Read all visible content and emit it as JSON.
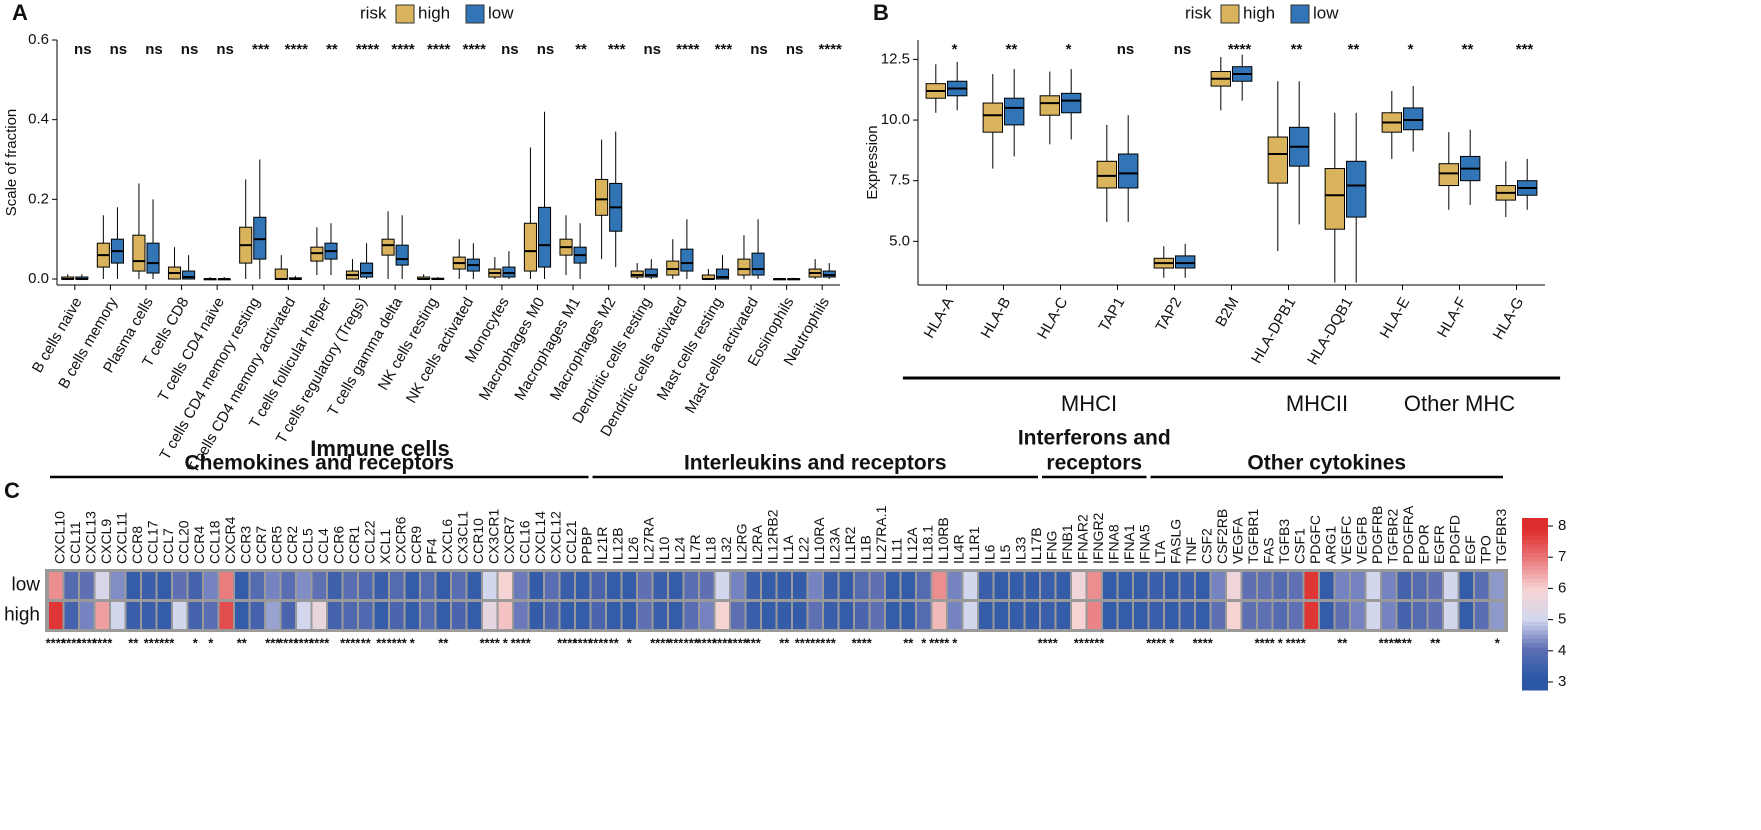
{
  "chart_data": [
    {
      "type": "box",
      "panel_label": "A",
      "x_label": "Immune cells",
      "y_label": "Scale of fraction",
      "legend_title": "risk",
      "legend_position": "top",
      "categories": [
        "B cells naive",
        "B cells memory",
        "Plasma cells",
        "T cells CD8",
        "T cells CD4 naive",
        "T cells CD4 memory resting",
        "T cells CD4 memory activated",
        "T cells follicular helper",
        "T cells regulatory (Tregs)",
        "T cells gamma delta",
        "NK cells resting",
        "NK cells activated",
        "Monocytes",
        "Macrophages M0",
        "Macrophages M1",
        "Macrophages M2",
        "Dendritic cells resting",
        "Dendritic cells activated",
        "Mast cells resting",
        "Mast cells activated",
        "Eosinophils",
        "Neutrophils"
      ],
      "significance": [
        "ns",
        "ns",
        "ns",
        "ns",
        "ns",
        "***",
        "****",
        "**",
        "****",
        "****",
        "****",
        "****",
        "ns",
        "ns",
        "**",
        "***",
        "ns",
        "****",
        "***",
        "ns",
        "ns",
        "****"
      ],
      "series": [
        {
          "name": "high",
          "color": "#d9b45c",
          "values": [
            [
              0,
              0,
              0,
              0.005,
              0.012
            ],
            [
              0,
              0.03,
              0.06,
              0.09,
              0.16
            ],
            [
              0,
              0.02,
              0.045,
              0.11,
              0.24
            ],
            [
              0,
              0,
              0.015,
              0.03,
              0.08
            ],
            [
              0,
              0,
              0,
              0,
              0.005
            ],
            [
              0,
              0.04,
              0.085,
              0.13,
              0.25
            ],
            [
              0,
              0,
              0,
              0.025,
              0.06
            ],
            [
              0.01,
              0.045,
              0.065,
              0.08,
              0.13
            ],
            [
              0,
              0,
              0.01,
              0.02,
              0.05
            ],
            [
              0,
              0.06,
              0.085,
              0.1,
              0.17
            ],
            [
              0,
              0,
              0,
              0.005,
              0.012
            ],
            [
              0,
              0.025,
              0.04,
              0.055,
              0.1
            ],
            [
              0,
              0.005,
              0.015,
              0.025,
              0.055
            ],
            [
              0,
              0.02,
              0.07,
              0.14,
              0.33
            ],
            [
              0.01,
              0.06,
              0.08,
              0.1,
              0.16
            ],
            [
              0.05,
              0.16,
              0.2,
              0.25,
              0.35
            ],
            [
              0,
              0.005,
              0.01,
              0.02,
              0.04
            ],
            [
              0,
              0.01,
              0.025,
              0.045,
              0.1
            ],
            [
              0,
              0,
              0,
              0.01,
              0.025
            ],
            [
              0,
              0.01,
              0.025,
              0.05,
              0.11
            ],
            [
              0,
              0,
              0,
              0,
              0.003
            ],
            [
              0,
              0.005,
              0.015,
              0.025,
              0.05
            ]
          ]
        },
        {
          "name": "low",
          "color": "#3175b6",
          "values": [
            [
              0,
              0,
              0,
              0.005,
              0.012
            ],
            [
              0,
              0.04,
              0.07,
              0.1,
              0.18
            ],
            [
              0,
              0.015,
              0.04,
              0.09,
              0.2
            ],
            [
              0,
              0,
              0.005,
              0.02,
              0.06
            ],
            [
              0,
              0,
              0,
              0,
              0.005
            ],
            [
              0,
              0.05,
              0.1,
              0.155,
              0.3
            ],
            [
              0,
              0,
              0,
              0.003,
              0.008
            ],
            [
              0.01,
              0.05,
              0.07,
              0.09,
              0.14
            ],
            [
              0,
              0.005,
              0.015,
              0.04,
              0.09
            ],
            [
              0,
              0.035,
              0.05,
              0.085,
              0.16
            ],
            [
              0,
              0,
              0,
              0.002,
              0.005
            ],
            [
              0,
              0.02,
              0.035,
              0.05,
              0.09
            ],
            [
              0,
              0.005,
              0.015,
              0.03,
              0.07
            ],
            [
              0,
              0.03,
              0.085,
              0.18,
              0.42
            ],
            [
              0,
              0.04,
              0.06,
              0.08,
              0.14
            ],
            [
              0.03,
              0.12,
              0.18,
              0.24,
              0.37
            ],
            [
              0,
              0.005,
              0.01,
              0.025,
              0.05
            ],
            [
              0,
              0.02,
              0.04,
              0.075,
              0.15
            ],
            [
              0,
              0,
              0.005,
              0.025,
              0.06
            ],
            [
              0,
              0.01,
              0.025,
              0.065,
              0.15
            ],
            [
              0,
              0,
              0,
              0,
              0.003
            ],
            [
              0,
              0.005,
              0.01,
              0.02,
              0.04
            ]
          ]
        }
      ],
      "ylim": [
        -0.015,
        0.6
      ],
      "yticks": [
        {
          "value": 0,
          "label": "0.0"
        },
        0.2,
        0.4,
        0.6
      ]
    },
    {
      "type": "box",
      "panel_label": "B",
      "y_label": "Expression",
      "legend_title": "risk",
      "legend_position": "top",
      "categories": [
        "HLA-A",
        "HLA-B",
        "HLA-C",
        "TAP1",
        "TAP2",
        "B2M",
        "HLA-DPB1",
        "HLA-DQB1",
        "HLA-E",
        "HLA-F",
        "HLA-G"
      ],
      "significance": [
        "*",
        "**",
        "*",
        "ns",
        "ns",
        "****",
        "**",
        "**",
        "*",
        "**",
        "***"
      ],
      "groups": [
        {
          "label": "MHCI",
          "start": 0,
          "end": 5
        },
        {
          "label": "MHCII",
          "start": 6,
          "end": 7
        },
        {
          "label": "Other MHC",
          "start": 8,
          "end": 10
        }
      ],
      "series": [
        {
          "name": "high",
          "color": "#d9b45c",
          "values": [
            [
              10.3,
              10.9,
              11.2,
              11.5,
              12.3
            ],
            [
              8.0,
              9.5,
              10.2,
              10.7,
              11.9
            ],
            [
              9.0,
              10.2,
              10.7,
              11.0,
              12.0
            ],
            [
              5.8,
              7.2,
              7.7,
              8.3,
              9.8
            ],
            [
              3.5,
              3.9,
              4.1,
              4.3,
              4.8
            ],
            [
              10.4,
              11.4,
              11.7,
              12.0,
              12.6
            ],
            [
              4.6,
              7.4,
              8.6,
              9.3,
              11.6
            ],
            [
              3.3,
              5.5,
              6.9,
              8.0,
              10.3
            ],
            [
              8.4,
              9.5,
              9.9,
              10.3,
              11.2
            ],
            [
              6.3,
              7.3,
              7.8,
              8.2,
              9.5
            ],
            [
              6.0,
              6.7,
              7.0,
              7.3,
              8.3
            ]
          ]
        },
        {
          "name": "low",
          "color": "#3175b6",
          "values": [
            [
              10.4,
              11.0,
              11.3,
              11.6,
              12.4
            ],
            [
              8.5,
              9.8,
              10.5,
              10.9,
              12.1
            ],
            [
              9.2,
              10.3,
              10.8,
              11.1,
              12.1
            ],
            [
              5.8,
              7.2,
              7.8,
              8.6,
              10.2
            ],
            [
              3.5,
              3.9,
              4.1,
              4.4,
              4.9
            ],
            [
              10.8,
              11.6,
              11.9,
              12.2,
              12.7
            ],
            [
              5.7,
              8.1,
              8.9,
              9.7,
              11.6
            ],
            [
              3.3,
              6.0,
              7.3,
              8.3,
              10.3
            ],
            [
              8.7,
              9.6,
              10.0,
              10.5,
              11.4
            ],
            [
              6.5,
              7.5,
              8.0,
              8.5,
              9.6
            ],
            [
              6.3,
              6.9,
              7.2,
              7.5,
              8.4
            ]
          ]
        }
      ],
      "ylim": [
        3.2,
        13.3
      ],
      "yticks": [
        {
          "value": 5,
          "label": "5.0"
        },
        7.5,
        {
          "value": 10,
          "label": "10.0"
        },
        12.5
      ]
    },
    {
      "type": "heatmap",
      "panel_label": "C",
      "groups": [
        {
          "label": [
            "Chemokines and receptors"
          ],
          "start": 0,
          "end": 34
        },
        {
          "label": [
            "Interleukins and receptors"
          ],
          "start": 35,
          "end": 63
        },
        {
          "label": [
            "Interferons and",
            "receptors"
          ],
          "start": 64,
          "end": 70
        },
        {
          "label": [
            "Other cytokines"
          ],
          "start": 71,
          "end": 93
        }
      ],
      "columns": [
        "CXCL10",
        "CCL11",
        "CXCL13",
        "CXCL9",
        "CXCL11",
        "CCR8",
        "CCL17",
        "CCL7",
        "CCL20",
        "CCR4",
        "CCL18",
        "CXCR4",
        "CCR3",
        "CCR7",
        "CCR5",
        "CCR2",
        "CCL5",
        "CCL4",
        "CCR6",
        "CCR1",
        "CCL22",
        "XCL1",
        "CXCR6",
        "CCR9",
        "PF4",
        "CXCL6",
        "CX3CL1",
        "CCR10",
        "CX3CR1",
        "CXCR7",
        "CCL16",
        "CXCL14",
        "CXCL12",
        "CCL21",
        "PPBP",
        "IL21R",
        "IL12B",
        "IL26",
        "IL27RA",
        "IL10",
        "IL24",
        "IL7R",
        "IL18",
        "IL32",
        "IL2RG",
        "IL2RA",
        "IL12RB2",
        "IL1A",
        "IL22",
        "IL10RA",
        "IL23A",
        "IL1R2",
        "IL1B",
        "IL27RA.1",
        "IL11",
        "IL12A",
        "IL18.1",
        "IL10RB",
        "IL4R",
        "IL1R1",
        "IL6",
        "IL5",
        "IL33",
        "IL17B",
        "IFNG",
        "IFNB1",
        "IFNAR2",
        "IFNGR2",
        "IFNA8",
        "IFNA1",
        "IFNA5",
        "LTA",
        "FASLG",
        "TNF",
        "CSF2",
        "CSF2RB",
        "VEGFA",
        "TGFBR1",
        "FAS",
        "TGFB3",
        "CSF1",
        "PDGFC",
        "ARG1",
        "VEGFC",
        "VEGFB",
        "PDGFRB",
        "TGFBR2",
        "PDGFRA",
        "EPOR",
        "EGFR",
        "PDGFD",
        "EGF",
        "TPO",
        "TGFBR3"
      ],
      "rows": [
        "low",
        "high"
      ],
      "values": [
        [
          6.8,
          3.8,
          4.0,
          5.2,
          4.3,
          3.2,
          3.3,
          3.2,
          4.0,
          3.5,
          4.2,
          7.0,
          3.2,
          3.8,
          4.2,
          3.9,
          4.3,
          4.0,
          3.4,
          3.9,
          3.7,
          3.3,
          3.8,
          3.2,
          3.8,
          3.2,
          3.9,
          3.2,
          5.0,
          6.0,
          4.1,
          3.2,
          3.9,
          3.3,
          3.2,
          3.6,
          3.2,
          3.2,
          4.0,
          3.3,
          3.2,
          3.9,
          4.0,
          5.0,
          4.2,
          3.3,
          3.2,
          3.2,
          3.2,
          4.2,
          3.3,
          3.2,
          3.8,
          4.0,
          3.2,
          3.2,
          3.8,
          6.8,
          4.2,
          5.0,
          3.3,
          3.2,
          3.2,
          3.2,
          3.3,
          3.2,
          5.8,
          6.8,
          3.2,
          3.2,
          3.2,
          3.3,
          3.2,
          3.3,
          3.2,
          4.2,
          5.8,
          4.0,
          4.0,
          3.8,
          4.0,
          7.9,
          3.2,
          4.2,
          4.2,
          5.0,
          4.2,
          3.5,
          3.8,
          4.0,
          5.0,
          3.2,
          3.9,
          4.4
        ],
        [
          7.9,
          3.5,
          4.2,
          6.6,
          5.0,
          3.3,
          3.3,
          3.2,
          5.0,
          3.5,
          3.9,
          7.6,
          3.2,
          3.5,
          4.5,
          3.6,
          5.0,
          5.6,
          3.5,
          3.7,
          3.7,
          3.2,
          3.6,
          3.2,
          3.8,
          3.2,
          3.6,
          3.2,
          5.5,
          6.2,
          4.1,
          3.2,
          3.6,
          3.2,
          3.2,
          3.6,
          3.2,
          3.2,
          4.0,
          3.3,
          3.2,
          3.9,
          4.2,
          6.0,
          4.0,
          3.3,
          3.2,
          3.2,
          3.2,
          4.0,
          3.3,
          3.2,
          3.6,
          4.0,
          3.2,
          3.2,
          3.8,
          6.3,
          4.2,
          5.0,
          3.2,
          3.2,
          3.2,
          3.2,
          3.3,
          3.2,
          6.0,
          6.9,
          3.2,
          3.2,
          3.2,
          3.3,
          3.2,
          3.3,
          3.2,
          4.0,
          6.0,
          4.0,
          4.0,
          3.8,
          4.0,
          7.9,
          3.2,
          4.0,
          4.2,
          5.0,
          4.2,
          3.5,
          3.8,
          4.0,
          5.0,
          3.2,
          3.9,
          4.4
        ]
      ],
      "significance": [
        "****",
        "****",
        "****",
        "****",
        null,
        "**",
        "**",
        "****",
        null,
        "*",
        "*",
        null,
        "**",
        null,
        "***",
        "****",
        "****",
        "****",
        null,
        "****",
        "**",
        "**",
        "****",
        "*",
        null,
        "**",
        null,
        null,
        "****",
        "*",
        "****",
        null,
        null,
        "****",
        "****",
        "****",
        "**",
        "*",
        null,
        "****",
        "***",
        "***",
        "****",
        "****",
        "****",
        "***",
        null,
        "**",
        "**",
        "****",
        "**",
        null,
        "****",
        null,
        null,
        "**",
        "*",
        "****",
        "*",
        null,
        null,
        null,
        null,
        null,
        "****",
        null,
        "**",
        "****",
        null,
        null,
        null,
        "****",
        "*",
        null,
        "****",
        null,
        null,
        null,
        "****",
        "*",
        "****",
        null,
        null,
        "**",
        null,
        null,
        "****",
        "***",
        null,
        "**",
        null,
        null,
        null,
        "*"
      ],
      "color_stops": [
        "#2b57a6",
        "#5e6fb4",
        "#d3d7ee",
        "#f6d4d4",
        "#ea7b7e",
        "#de2d2d"
      ],
      "color_lim": [
        3,
        8
      ],
      "colorbar_ticks": [
        3,
        4,
        5,
        6,
        7,
        8
      ]
    }
  ]
}
